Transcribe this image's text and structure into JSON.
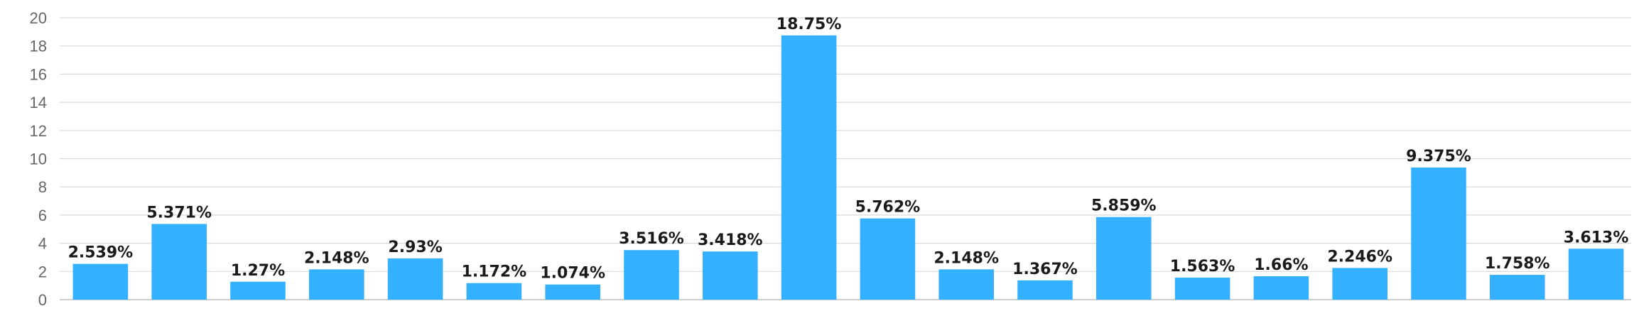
{
  "chart_data": {
    "type": "bar",
    "title": "",
    "xlabel": "",
    "ylabel": "",
    "ylim": [
      0,
      20
    ],
    "y_ticks": [
      0,
      2,
      4,
      6,
      8,
      10,
      12,
      14,
      16,
      18,
      20
    ],
    "grid": true,
    "legend": "none",
    "bar_color": "#33B0FF",
    "values": [
      2.539,
      5.371,
      1.27,
      2.148,
      2.93,
      1.172,
      1.074,
      3.516,
      3.418,
      18.75,
      5.762,
      2.148,
      1.367,
      5.859,
      1.563,
      1.66,
      2.246,
      9.375,
      1.758,
      3.613
    ],
    "data_labels": [
      "2.539%",
      "5.371%",
      "1.27%",
      "2.148%",
      "2.93%",
      "1.172%",
      "1.074%",
      "3.516%",
      "3.418%",
      "18.75%",
      "5.762%",
      "2.148%",
      "1.367%",
      "5.859%",
      "1.563%",
      "1.66%",
      "2.246%",
      "9.375%",
      "1.758%",
      "3.613%"
    ]
  }
}
